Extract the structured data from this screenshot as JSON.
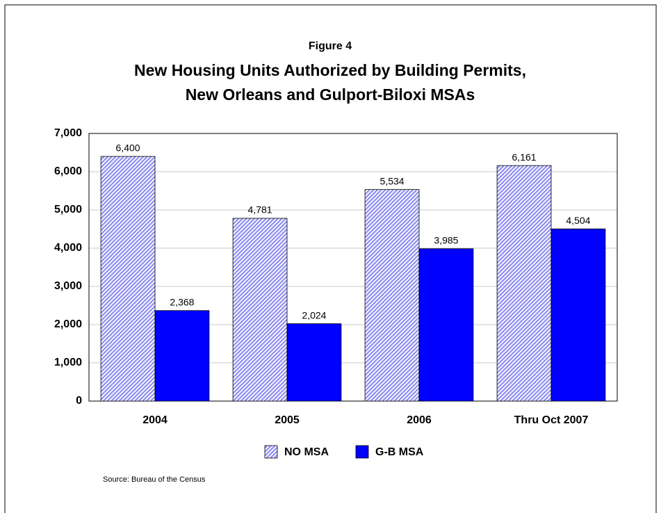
{
  "chart_data": {
    "type": "bar",
    "supertitle": "Figure 4",
    "title": [
      "New Housing Units Authorized by Building Permits,",
      "New Orleans and Gulport-Biloxi MSAs"
    ],
    "categories": [
      "2004",
      "2005",
      "2006",
      "Thru Oct 2007"
    ],
    "series": [
      {
        "name": "NO MSA",
        "color": "#8c8cf0",
        "pattern": "hatch",
        "values": [
          6400,
          4781,
          5534,
          6161
        ],
        "value_labels": [
          "6,400",
          "4,781",
          "5,534",
          "6,161"
        ]
      },
      {
        "name": "G-B MSA",
        "color": "#0000ff",
        "values": [
          2368,
          2024,
          3985,
          4504
        ],
        "value_labels": [
          "2,368",
          "2,024",
          "3,985",
          "4,504"
        ]
      }
    ],
    "ylim": [
      0,
      7000
    ],
    "yticks": [
      0,
      {
        "value": 1000,
        "label": "1,000"
      },
      {
        "value": 2000,
        "label": "2,000"
      },
      {
        "value": 3000,
        "label": "3,000"
      },
      {
        "value": 4000,
        "label": "4,000"
      },
      {
        "value": 5000,
        "label": "5,000"
      },
      {
        "value": 6000,
        "label": "6,000"
      },
      {
        "value": 7000,
        "label": "7,000"
      }
    ],
    "grid": true,
    "legend": "bottom",
    "source": "Source: Bureau of the Census"
  }
}
